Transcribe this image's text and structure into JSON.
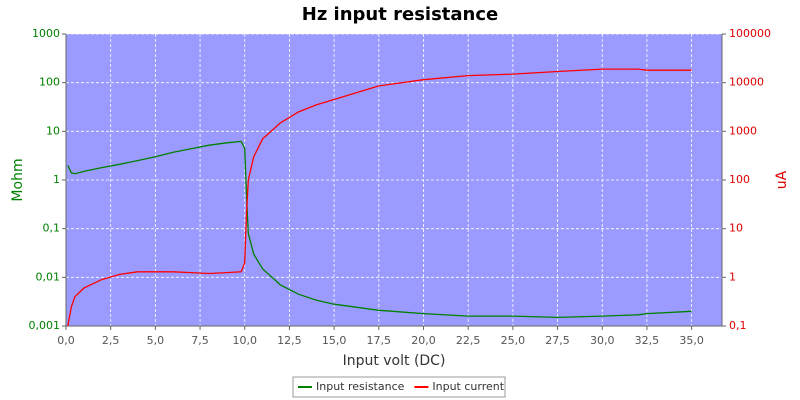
{
  "chart_data": {
    "type": "line",
    "title": "Hz input resistance",
    "x_label": "Input volt (DC)",
    "y_label": "Mohm",
    "y2_label": "uA",
    "x": [
      0.1,
      0.3,
      0.5,
      1,
      2,
      3,
      4,
      5,
      6,
      7,
      8,
      9,
      9.8,
      10.0,
      10.1,
      10.2,
      10.5,
      11,
      12,
      13,
      14,
      15,
      17.5,
      20,
      22.5,
      25,
      27.5,
      30,
      32,
      32.5,
      35
    ],
    "xlim": [
      0,
      36.7
    ],
    "xticks": [
      {
        "value": 0,
        "label": "0,0"
      },
      {
        "value": 2.5,
        "label": "2,5"
      },
      {
        "value": 5,
        "label": "5,0"
      },
      {
        "value": 7.5,
        "label": "7,5"
      },
      {
        "value": 10,
        "label": "10,0"
      },
      {
        "value": 12.5,
        "label": "12,5"
      },
      {
        "value": 15,
        "label": "15,0"
      },
      {
        "value": 17.5,
        "label": "17,5"
      },
      {
        "value": 20,
        "label": "20,0"
      },
      {
        "value": 22.5,
        "label": "22,5"
      },
      {
        "value": 25,
        "label": "25,0"
      },
      {
        "value": 27.5,
        "label": "27,5"
      },
      {
        "value": 30,
        "label": "30,0"
      },
      {
        "value": 32.5,
        "label": "32,5"
      },
      {
        "value": 35,
        "label": "35,0"
      }
    ],
    "ylim": [
      0.001,
      1000
    ],
    "yticks": [
      {
        "value": 0.001,
        "label": "0,001"
      },
      {
        "value": 0.01,
        "label": "0,01"
      },
      {
        "value": 0.1,
        "label": "0,1"
      },
      1,
      10,
      100,
      1000
    ],
    "y2lim": [
      0.1,
      100000
    ],
    "y2ticks": [
      {
        "value": 0.1,
        "label": "0,1"
      },
      1,
      10,
      100,
      1000,
      10000,
      100000
    ],
    "ylog": true,
    "y2log": true,
    "grid": true,
    "legend": "bottom",
    "series": [
      {
        "name": "Input resistance",
        "color": "#008000",
        "values": [
          2,
          1.4,
          1.35,
          1.5,
          1.8,
          2.1,
          2.5,
          3,
          3.7,
          4.4,
          5.2,
          5.8,
          6.2,
          4.5,
          0.5,
          0.08,
          0.03,
          0.015,
          0.007,
          0.0045,
          0.0034,
          0.0028,
          0.0021,
          0.0018,
          0.0016,
          0.0016,
          0.0015,
          0.0016,
          0.0017,
          0.0018,
          0.002
        ]
      },
      {
        "name": "Input current",
        "color": "#ff0000",
        "axis": "y2",
        "values": [
          0.1,
          0.25,
          0.4,
          0.6,
          0.9,
          1.15,
          1.3,
          1.3,
          1.3,
          1.25,
          1.2,
          1.25,
          1.3,
          2,
          20,
          100,
          300,
          700,
          1500,
          2500,
          3500,
          4500,
          8600,
          11500,
          14000,
          15000,
          17000,
          19000,
          19000,
          18000,
          18000
        ]
      }
    ]
  }
}
